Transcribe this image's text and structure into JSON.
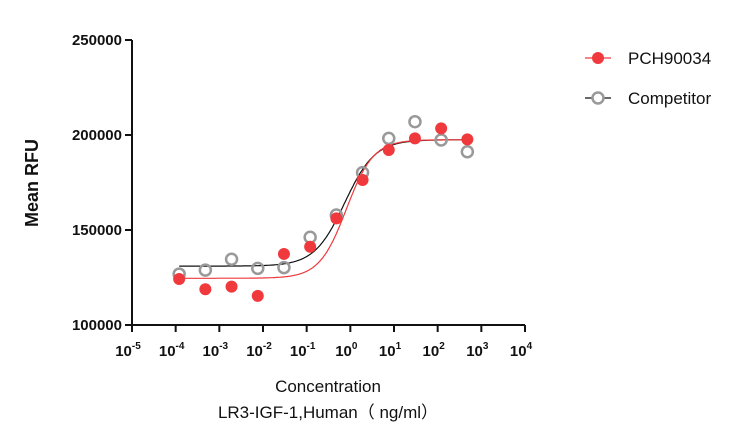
{
  "chart_data": {
    "type": "scatter",
    "title": "",
    "xlabel": "Concentration",
    "xlabel2": "LR3-IGF-1,Human（ ng/ml）",
    "ylabel": "Mean RFU",
    "xscale": "log",
    "xlim_log10": [
      -5,
      4
    ],
    "ylim": [
      100000,
      250000
    ],
    "x_ticks_log10": [
      -5,
      -4,
      -3,
      -2,
      -1,
      0,
      1,
      2,
      3,
      4
    ],
    "y_ticks": [
      100000,
      150000,
      200000,
      250000
    ],
    "y_tick_labels": [
      "100000",
      "150000",
      "200000",
      "250000"
    ],
    "legend_position": "top-right",
    "x_log10": [
      -3.92,
      -3.32,
      -2.72,
      -2.12,
      -1.52,
      -0.92,
      -0.32,
      0.28,
      0.88,
      1.48,
      2.08,
      2.68
    ],
    "series": [
      {
        "name": "PCH90034",
        "color": "#f0393d",
        "marker": "filled-circle",
        "values": [
          124200,
          118800,
          120200,
          115300,
          137400,
          141200,
          156100,
          176300,
          192100,
          198200,
          203500,
          197700
        ],
        "fit": {
          "bottom": 124600,
          "top": 197500,
          "log_ec50": -0.09,
          "hill": 1.4
        }
      },
      {
        "name": "Competitor",
        "color": "#999999",
        "line_color": "#111111",
        "marker": "open-circle",
        "values": [
          126800,
          128900,
          134600,
          129800,
          130200,
          146200,
          157900,
          180200,
          198200,
          207000,
          197400,
          191200
        ],
        "fit": {
          "bottom": 131000,
          "top": 197500,
          "log_ec50": -0.13,
          "hill": 1.25
        }
      }
    ]
  }
}
